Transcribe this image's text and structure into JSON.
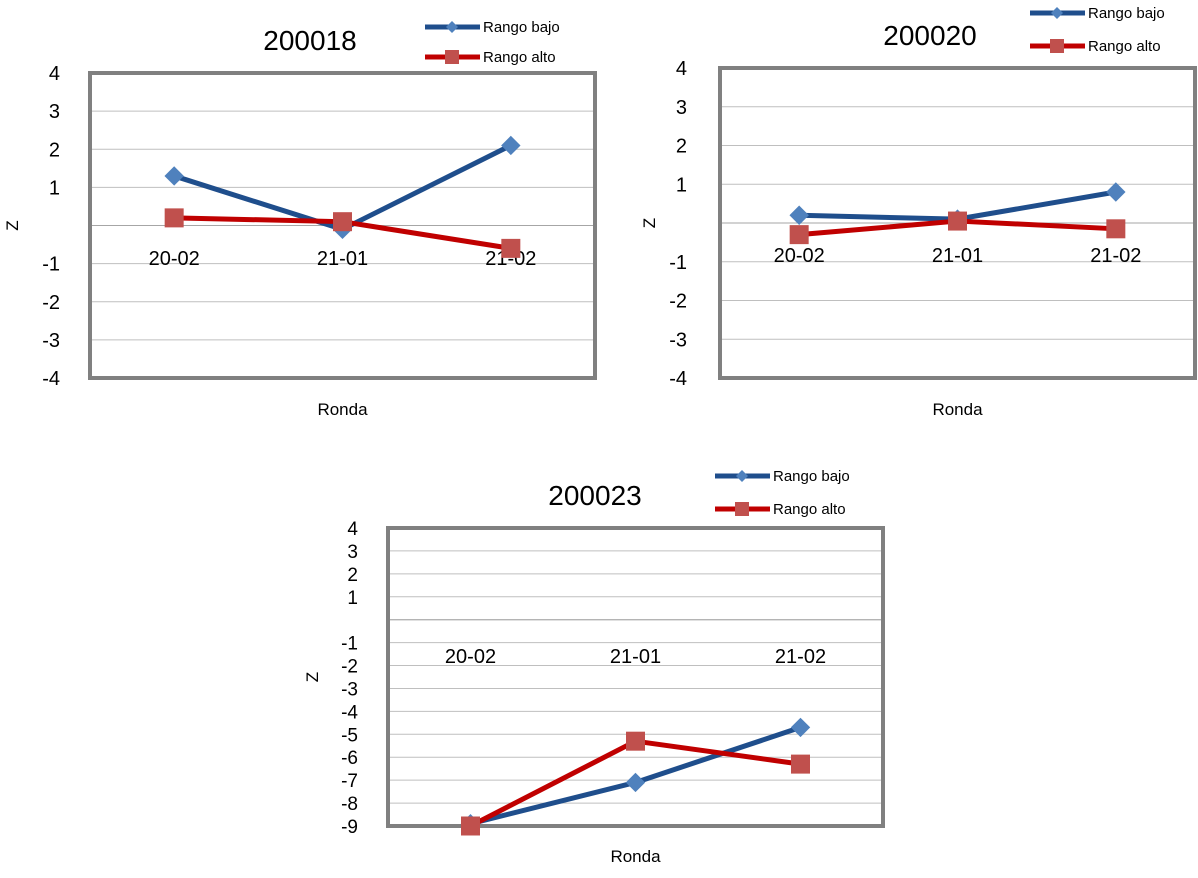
{
  "colors": {
    "low": "#1f4e8c",
    "low_marker": "#4f81bd",
    "high": "#c00000",
    "high_marker": "#c0504d",
    "frame": "#808080",
    "grid": "#bfbfbf"
  },
  "chart_data": [
    {
      "type": "line",
      "title": "200018",
      "xlabel": "Ronda",
      "ylabel": "Z",
      "categories": [
        "20-02",
        "21-01",
        "21-02"
      ],
      "ylim": [
        -4,
        4
      ],
      "yticks": [
        "4",
        "3",
        "2",
        "1",
        "",
        "-1",
        "-2",
        "-3",
        "-4"
      ],
      "grid": true,
      "legend_position": "top-right",
      "series": [
        {
          "name": "Rango bajo",
          "values": [
            1.3,
            -0.1,
            2.1
          ]
        },
        {
          "name": "Rango alto",
          "values": [
            0.2,
            0.1,
            -0.6
          ]
        }
      ]
    },
    {
      "type": "line",
      "title": "200020",
      "xlabel": "Ronda",
      "ylabel": "Z",
      "categories": [
        "20-02",
        "21-01",
        "21-02"
      ],
      "ylim": [
        -4,
        4
      ],
      "yticks": [
        "4",
        "3",
        "2",
        "1",
        "",
        "-1",
        "-2",
        "-3",
        "-4"
      ],
      "grid": true,
      "legend_position": "top-right",
      "series": [
        {
          "name": "Rango bajo",
          "values": [
            0.2,
            0.1,
            0.8
          ]
        },
        {
          "name": "Rango alto",
          "values": [
            -0.3,
            0.05,
            -0.15
          ]
        }
      ]
    },
    {
      "type": "line",
      "title": "200023",
      "xlabel": "Ronda",
      "ylabel": "Z",
      "categories": [
        "20-02",
        "21-01",
        "21-02"
      ],
      "ylim": [
        -9,
        4
      ],
      "yticks": [
        "4",
        "3",
        "2",
        "1",
        "",
        "-1",
        "-2",
        "-3",
        "-4",
        "-5",
        "-6",
        "-7",
        "-8",
        "-9"
      ],
      "grid": true,
      "legend_position": "top-right",
      "series": [
        {
          "name": "Rango bajo",
          "values": [
            -8.9,
            -7.1,
            -4.7
          ]
        },
        {
          "name": "Rango alto",
          "values": [
            -9.0,
            -5.3,
            -6.3
          ]
        }
      ]
    }
  ]
}
